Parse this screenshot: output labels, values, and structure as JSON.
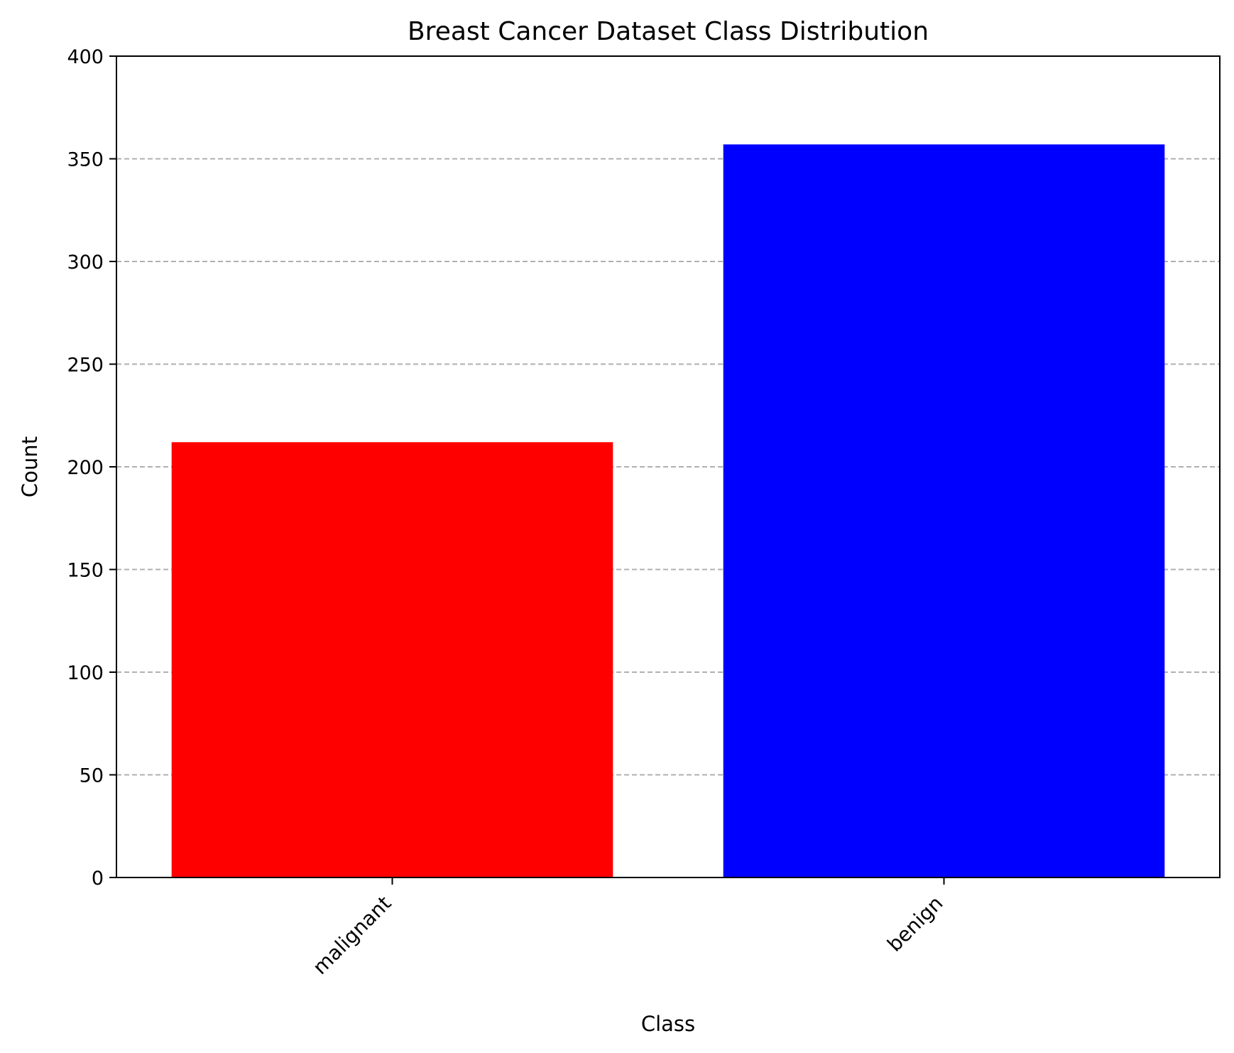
{
  "chart_data": {
    "type": "bar",
    "title": "Breast Cancer Dataset Class Distribution",
    "xlabel": "Class",
    "ylabel": "Count",
    "categories": [
      "malignant",
      "benign"
    ],
    "values": [
      212,
      357
    ],
    "bar_colors": [
      "#ff0000",
      "#0000ff"
    ],
    "ylim": [
      0,
      400
    ],
    "yticks": [
      0,
      50,
      100,
      150,
      200,
      250,
      300,
      350,
      400
    ],
    "ytick_labels": [
      "0",
      "50",
      "100",
      "150",
      "200",
      "250",
      "300",
      "350",
      "400"
    ],
    "grid": "y, dashed",
    "xtick_rotation": "45",
    "legend": "none"
  }
}
